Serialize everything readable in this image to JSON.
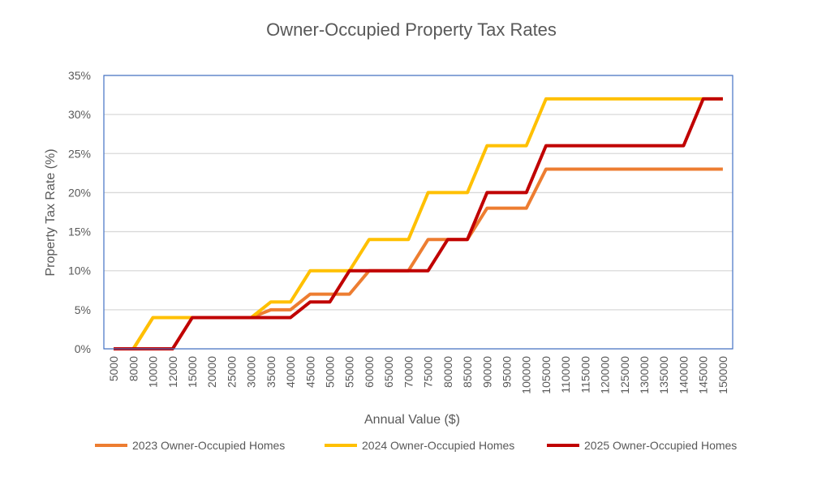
{
  "chart_data": {
    "type": "line",
    "title": "Owner-Occupied Property Tax Rates",
    "xlabel": "Annual Value ($)",
    "ylabel": "Property Tax Rate (%)",
    "ylim": [
      0,
      35
    ],
    "yticks": [
      "0%",
      "5%",
      "10%",
      "15%",
      "20%",
      "25%",
      "30%",
      "35%"
    ],
    "grid": true,
    "legend": "bottom",
    "categories": [
      "5000",
      "8000",
      "10000",
      "12000",
      "15000",
      "20000",
      "25000",
      "30000",
      "35000",
      "40000",
      "45000",
      "50000",
      "55000",
      "60000",
      "65000",
      "70000",
      "75000",
      "80000",
      "85000",
      "90000",
      "95000",
      "100000",
      "105000",
      "110000",
      "115000",
      "120000",
      "125000",
      "130000",
      "135000",
      "140000",
      "145000",
      "150000"
    ],
    "series": [
      {
        "name": "2023 Owner-Occupied Homes",
        "color": "#ED7D31",
        "values": [
          0,
          0,
          4,
          4,
          4,
          4,
          4,
          4,
          5,
          5,
          7,
          7,
          7,
          10,
          10,
          10,
          14,
          14,
          14,
          18,
          18,
          18,
          23,
          23,
          23,
          23,
          23,
          23,
          23,
          23,
          23,
          23
        ]
      },
      {
        "name": "2024 Owner-Occupied Homes",
        "color": "#FFC000",
        "values": [
          0,
          0,
          4,
          4,
          4,
          4,
          4,
          4,
          6,
          6,
          10,
          10,
          10,
          14,
          14,
          14,
          20,
          20,
          20,
          26,
          26,
          26,
          32,
          32,
          32,
          32,
          32,
          32,
          32,
          32,
          32,
          32
        ]
      },
      {
        "name": "2025 Owner-Occupied Homes",
        "color": "#C00000",
        "values": [
          0,
          0,
          0,
          0,
          4,
          4,
          4,
          4,
          4,
          4,
          6,
          6,
          10,
          10,
          10,
          10,
          10,
          14,
          14,
          20,
          20,
          20,
          26,
          26,
          26,
          26,
          26,
          26,
          26,
          26,
          32,
          32
        ]
      }
    ],
    "plot_border_color": "#4472C4"
  }
}
